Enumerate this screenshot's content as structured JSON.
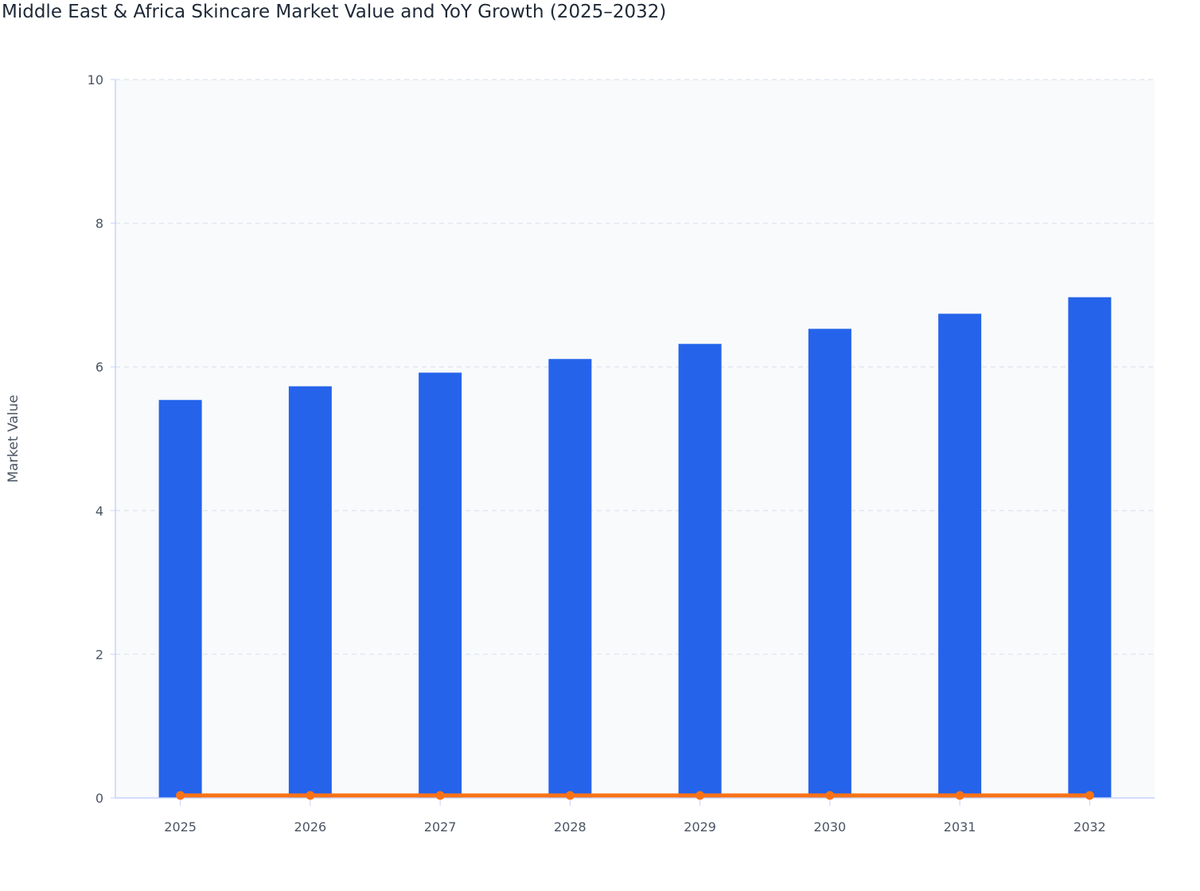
{
  "chart_data": {
    "type": "bar",
    "title": "Middle East & Africa Skincare Market Value and YoY Growth (2025–2032)",
    "xlabel": "",
    "ylabel": "Market Value",
    "ylim": [
      0,
      10
    ],
    "yticks": [
      "0",
      "2",
      "4",
      "6",
      "8",
      "10"
    ],
    "grid": true,
    "categories": [
      "2025",
      "2026",
      "2027",
      "2028",
      "2029",
      "2030",
      "2031",
      "2032"
    ],
    "series": [
      {
        "name": "Market Value",
        "type": "bar",
        "color": "#2563eb",
        "values": [
          5.54,
          5.73,
          5.92,
          6.11,
          6.32,
          6.53,
          6.74,
          6.97
        ]
      },
      {
        "name": "YoY Growth",
        "type": "line",
        "color": "#f97316",
        "values": [
          0.035,
          0.035,
          0.035,
          0.035,
          0.035,
          0.035,
          0.035,
          0.035
        ]
      }
    ]
  }
}
